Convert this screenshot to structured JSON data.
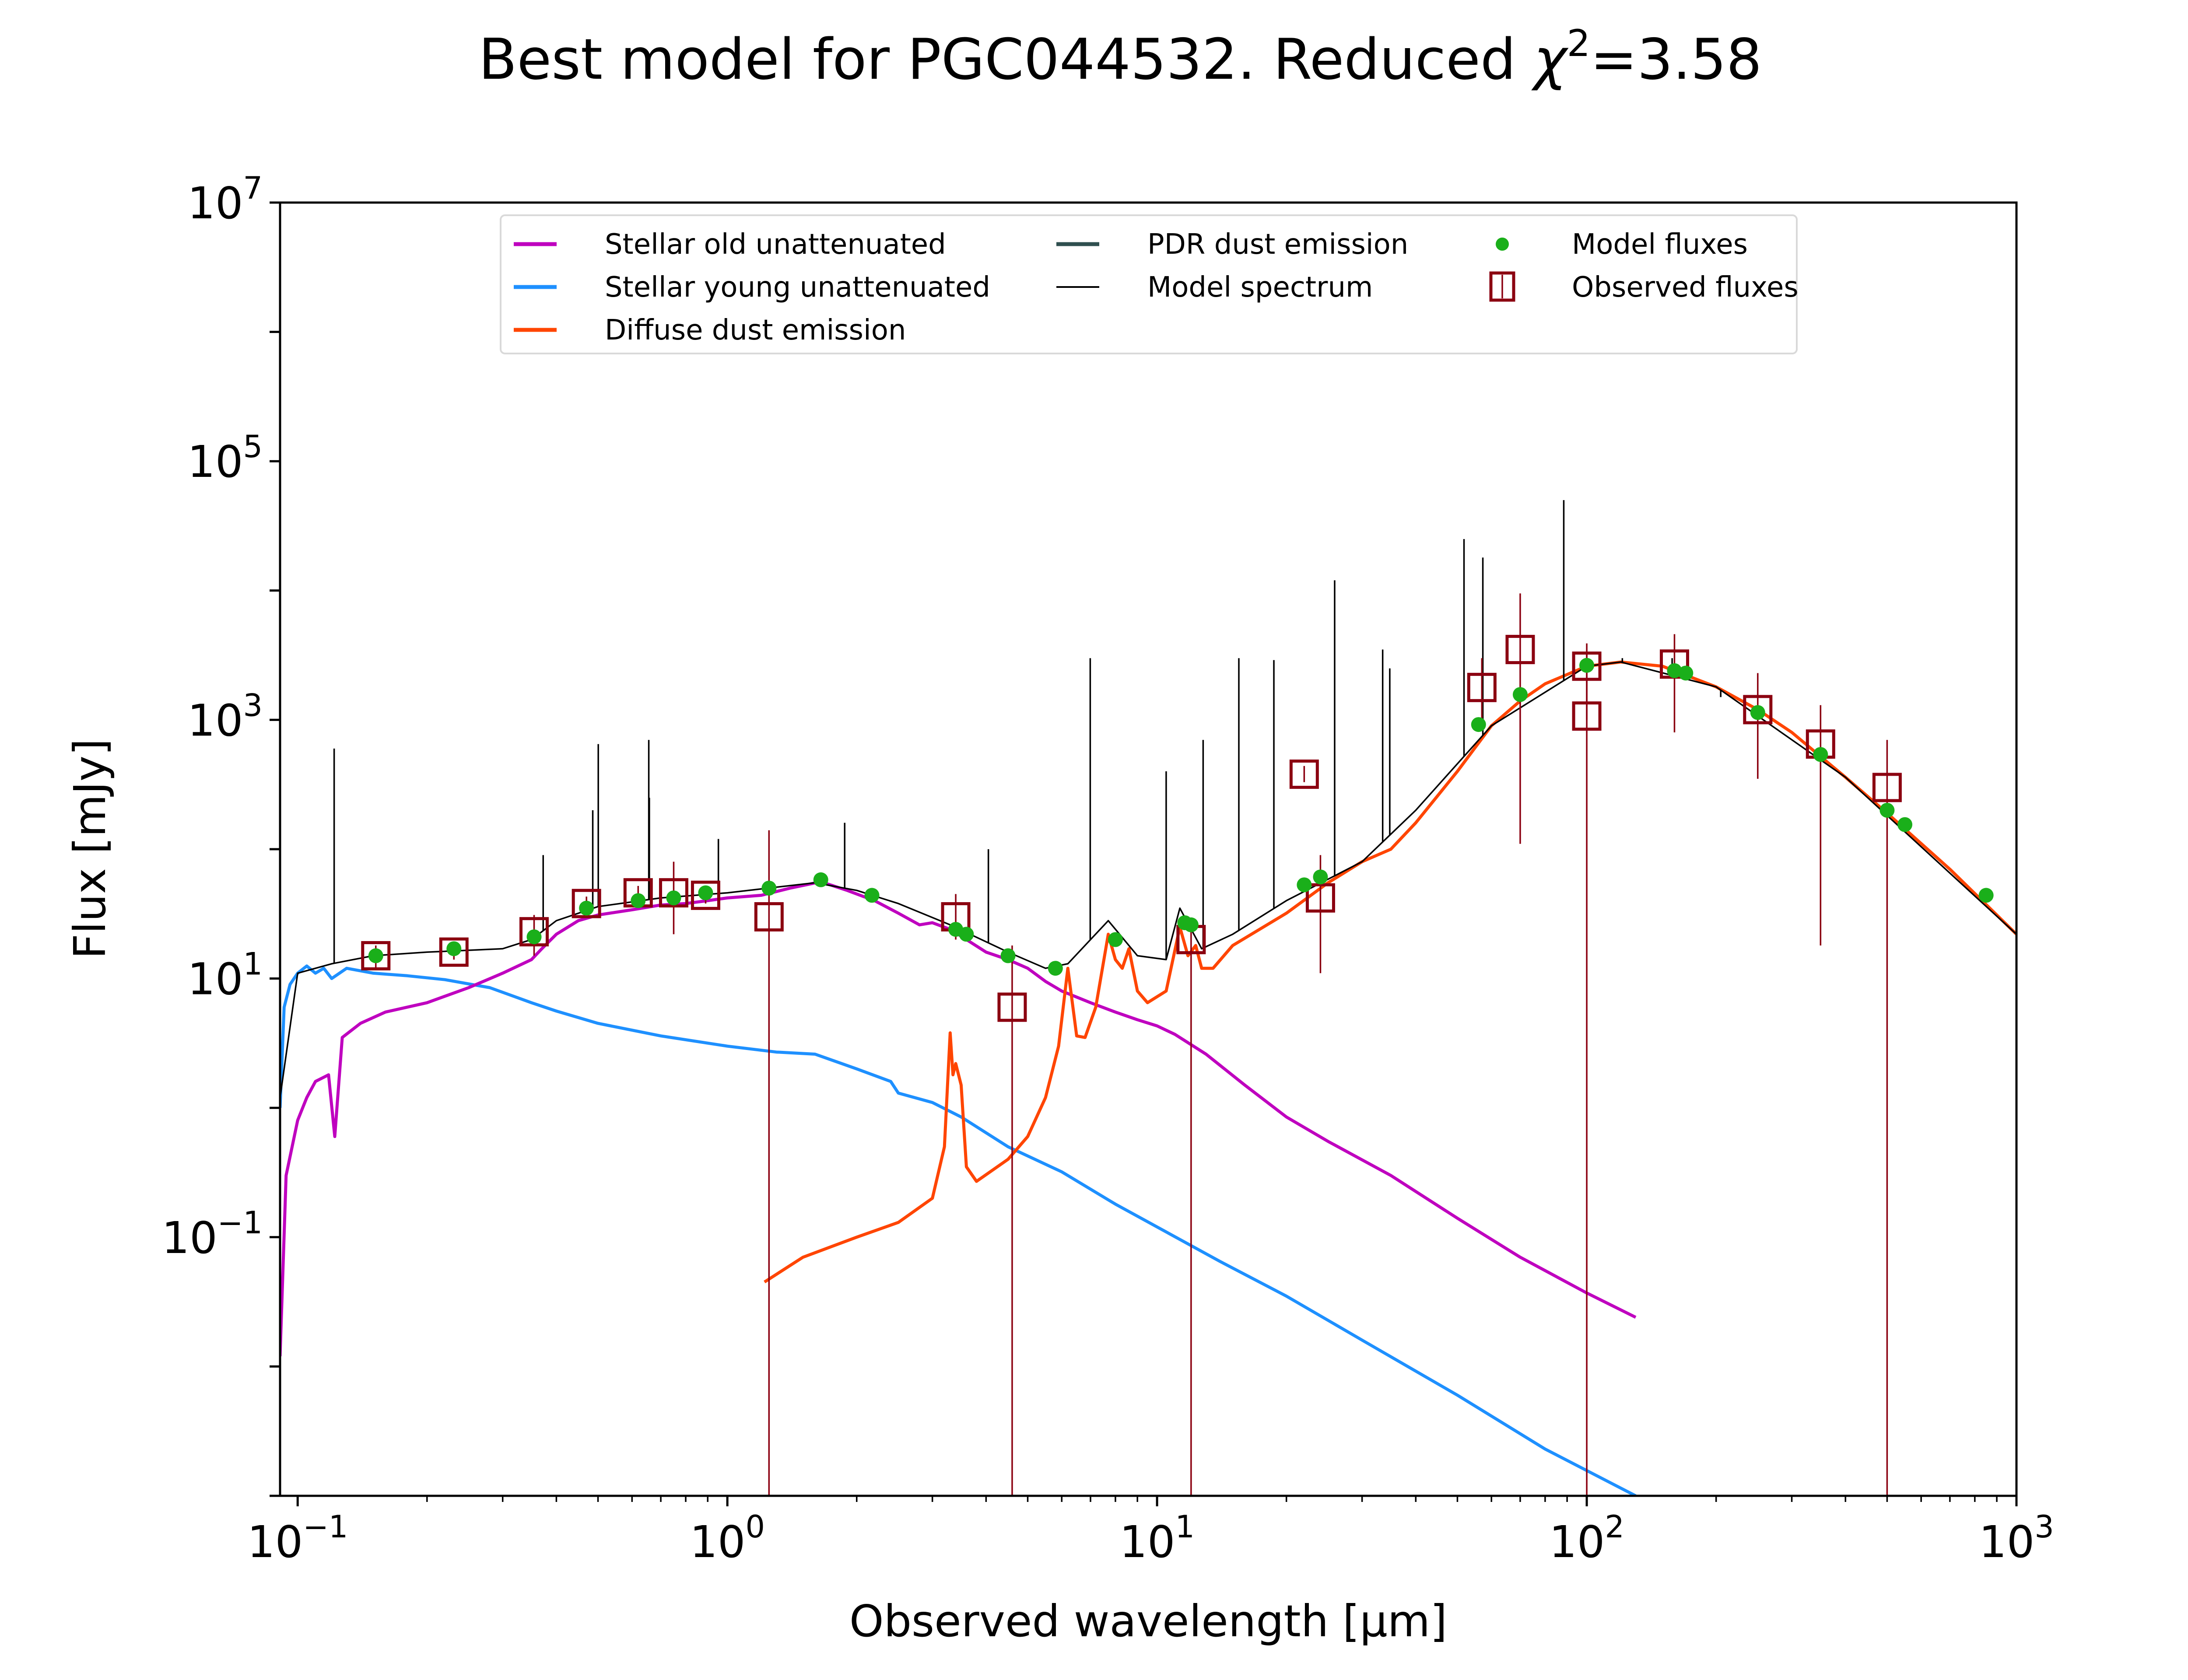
{
  "chart_data": {
    "type": "line",
    "title": "Best model for PGC044532. Reduced χ²=3.58",
    "title_parts": {
      "prefix": "Best model for PGC044532. Reduced ",
      "chi": "χ",
      "sup": "2",
      "suffix": "=3.58"
    },
    "xlabel": "Observed wavelength [μm]",
    "ylabel": "Flux [mJy]",
    "xscale": "log",
    "yscale": "log",
    "xlim": [
      0.091,
      1000
    ],
    "ylim": [
      0.001,
      10000000
    ],
    "grid": false,
    "x_ticks": [
      {
        "value": 0.1,
        "base": "10",
        "exp": "−1"
      },
      {
        "value": 1,
        "base": "10",
        "exp": "0"
      },
      {
        "value": 10,
        "base": "10",
        "exp": "1"
      },
      {
        "value": 100,
        "base": "10",
        "exp": "2"
      },
      {
        "value": 1000,
        "base": "10",
        "exp": "3"
      }
    ],
    "y_ticks": [
      {
        "value": 0.1,
        "base": "10",
        "exp": "−1"
      },
      {
        "value": 10,
        "base": "10",
        "exp": "1"
      },
      {
        "value": 1000,
        "base": "10",
        "exp": "3"
      },
      {
        "value": 100000,
        "base": "10",
        "exp": "5"
      },
      {
        "value": 10000000,
        "base": "10",
        "exp": "7"
      }
    ],
    "legend": {
      "placement": "top-center",
      "ncol": 3,
      "entries": [
        {
          "label": "Stellar old unattenuated",
          "kind": "line",
          "color": "#BF00BF"
        },
        {
          "label": "Stellar young unattenuated",
          "kind": "line",
          "color": "#1E90FF"
        },
        {
          "label": "Diffuse dust emission",
          "kind": "line",
          "color": "#FF4500"
        },
        {
          "label": "PDR dust emission",
          "kind": "line",
          "color": "#2F4F4F"
        },
        {
          "label": "Model spectrum",
          "kind": "thin-line",
          "color": "#000000"
        },
        {
          "label": "Model fluxes",
          "kind": "dot",
          "color": "#1AAF1A"
        },
        {
          "label": "Observed fluxes",
          "kind": "square",
          "color": "#8B0010"
        }
      ]
    },
    "series": [
      {
        "name": "Stellar old unattenuated",
        "color": "#BF00BF",
        "points": [
          [
            0.091,
            0.012
          ],
          [
            0.094,
            0.3
          ],
          [
            0.1,
            0.8
          ],
          [
            0.105,
            1.2
          ],
          [
            0.11,
            1.6
          ],
          [
            0.118,
            1.8
          ],
          [
            0.122,
            0.6
          ],
          [
            0.127,
            3.5
          ],
          [
            0.14,
            4.5
          ],
          [
            0.16,
            5.5
          ],
          [
            0.2,
            6.5
          ],
          [
            0.25,
            8.5
          ],
          [
            0.3,
            11
          ],
          [
            0.35,
            14
          ],
          [
            0.37,
            17
          ],
          [
            0.4,
            22
          ],
          [
            0.45,
            28
          ],
          [
            0.5,
            31
          ],
          [
            0.6,
            34
          ],
          [
            0.7,
            37
          ],
          [
            0.8,
            38
          ],
          [
            0.9,
            40
          ],
          [
            1.0,
            42
          ],
          [
            1.2,
            44
          ],
          [
            1.4,
            50
          ],
          [
            1.65,
            56
          ],
          [
            1.9,
            48
          ],
          [
            2.2,
            40
          ],
          [
            2.5,
            32
          ],
          [
            2.8,
            26
          ],
          [
            3.0,
            27
          ],
          [
            3.3,
            24
          ],
          [
            3.6,
            20
          ],
          [
            4.0,
            16
          ],
          [
            4.5,
            14
          ],
          [
            5.0,
            12
          ],
          [
            5.5,
            9.5
          ],
          [
            6,
            8
          ],
          [
            7,
            6.5
          ],
          [
            8,
            5.5
          ],
          [
            9,
            4.8
          ],
          [
            10,
            4.3
          ],
          [
            11,
            3.7
          ],
          [
            13,
            2.6
          ],
          [
            16,
            1.5
          ],
          [
            20,
            0.85
          ],
          [
            25,
            0.55
          ],
          [
            35,
            0.3
          ],
          [
            50,
            0.14
          ],
          [
            70,
            0.07
          ],
          [
            100,
            0.037
          ],
          [
            130,
            0.024
          ]
        ]
      },
      {
        "name": "Stellar young unattenuated",
        "color": "#1E90FF",
        "points": [
          [
            0.091,
            1.0
          ],
          [
            0.093,
            6
          ],
          [
            0.096,
            9
          ],
          [
            0.1,
            11
          ],
          [
            0.105,
            12.5
          ],
          [
            0.11,
            11
          ],
          [
            0.115,
            12
          ],
          [
            0.12,
            10
          ],
          [
            0.13,
            12
          ],
          [
            0.15,
            11
          ],
          [
            0.18,
            10.5
          ],
          [
            0.22,
            9.8
          ],
          [
            0.28,
            8.5
          ],
          [
            0.35,
            6.5
          ],
          [
            0.4,
            5.6
          ],
          [
            0.5,
            4.5
          ],
          [
            0.7,
            3.6
          ],
          [
            1.0,
            3.0
          ],
          [
            1.3,
            2.7
          ],
          [
            1.6,
            2.6
          ],
          [
            2.0,
            2.0
          ],
          [
            2.4,
            1.6
          ],
          [
            2.5,
            1.3
          ],
          [
            3.0,
            1.1
          ],
          [
            3.5,
            0.85
          ],
          [
            4.5,
            0.5
          ],
          [
            6,
            0.32
          ],
          [
            8,
            0.18
          ],
          [
            10,
            0.12
          ],
          [
            14,
            0.065
          ],
          [
            20,
            0.035
          ],
          [
            30,
            0.016
          ],
          [
            50,
            0.006
          ],
          [
            80,
            0.0023
          ],
          [
            130,
            0.001
          ]
        ]
      },
      {
        "name": "Diffuse dust emission",
        "color": "#FF4500",
        "points": [
          [
            1.22,
            0.045
          ],
          [
            1.5,
            0.07
          ],
          [
            2,
            0.1
          ],
          [
            2.5,
            0.13
          ],
          [
            3.0,
            0.2
          ],
          [
            3.2,
            0.5
          ],
          [
            3.3,
            3.8
          ],
          [
            3.35,
            1.8
          ],
          [
            3.4,
            2.2
          ],
          [
            3.5,
            1.5
          ],
          [
            3.6,
            0.35
          ],
          [
            3.8,
            0.27
          ],
          [
            4.5,
            0.4
          ],
          [
            5.0,
            0.6
          ],
          [
            5.5,
            1.2
          ],
          [
            5.9,
            3
          ],
          [
            6.2,
            12
          ],
          [
            6.5,
            3.6
          ],
          [
            6.8,
            3.5
          ],
          [
            7.2,
            6
          ],
          [
            7.7,
            22
          ],
          [
            8.0,
            14
          ],
          [
            8.3,
            12
          ],
          [
            8.6,
            17
          ],
          [
            9.0,
            8
          ],
          [
            9.5,
            6.5
          ],
          [
            10.5,
            8
          ],
          [
            11.3,
            25
          ],
          [
            11.8,
            15
          ],
          [
            12.3,
            18
          ],
          [
            12.7,
            12
          ],
          [
            13.5,
            12
          ],
          [
            15,
            18
          ],
          [
            20,
            32
          ],
          [
            25,
            55
          ],
          [
            30,
            80
          ],
          [
            35,
            100
          ],
          [
            40,
            160
          ],
          [
            50,
            400
          ],
          [
            60,
            900
          ],
          [
            70,
            1400
          ],
          [
            80,
            1900
          ],
          [
            100,
            2600
          ],
          [
            120,
            2800
          ],
          [
            150,
            2600
          ],
          [
            200,
            1800
          ],
          [
            250,
            1200
          ],
          [
            300,
            800
          ],
          [
            400,
            360
          ],
          [
            500,
            190
          ],
          [
            700,
            70
          ],
          [
            1000,
            22
          ]
        ]
      },
      {
        "name": "Model spectrum",
        "color": "#000000",
        "points": [
          [
            0.091,
            1.2
          ],
          [
            0.1,
            11
          ],
          [
            0.12,
            13
          ],
          [
            0.15,
            15
          ],
          [
            0.2,
            16
          ],
          [
            0.3,
            17
          ],
          [
            0.35,
            20
          ],
          [
            0.4,
            28
          ],
          [
            0.5,
            36
          ],
          [
            0.7,
            42
          ],
          [
            1.0,
            46
          ],
          [
            1.6,
            55
          ],
          [
            2.0,
            48
          ],
          [
            2.5,
            38
          ],
          [
            3.3,
            26
          ],
          [
            4.5,
            16
          ],
          [
            5.5,
            12
          ],
          [
            6.2,
            13
          ],
          [
            7.7,
            28
          ],
          [
            9,
            15
          ],
          [
            10.5,
            14
          ],
          [
            11.3,
            35
          ],
          [
            12.7,
            17
          ],
          [
            15,
            22
          ],
          [
            20,
            40
          ],
          [
            30,
            80
          ],
          [
            40,
            200
          ],
          [
            60,
            900
          ],
          [
            100,
            2600
          ],
          [
            120,
            2800
          ],
          [
            200,
            1800
          ],
          [
            400,
            360
          ],
          [
            1000,
            22
          ]
        ],
        "emission_lines": [
          [
            0.1216,
            600
          ],
          [
            0.3727,
            90
          ],
          [
            0.4861,
            200
          ],
          [
            0.5007,
            650
          ],
          [
            0.6563,
            700
          ],
          [
            0.6583,
            250
          ],
          [
            0.9531,
            120
          ],
          [
            1.875,
            160
          ],
          [
            4.05,
            100
          ],
          [
            6.99,
            3000
          ],
          [
            10.5,
            400
          ],
          [
            12.8,
            700
          ],
          [
            15.5,
            3000
          ],
          [
            18.7,
            2900
          ],
          [
            25.9,
            12000
          ],
          [
            33.5,
            3500
          ],
          [
            34.8,
            2500
          ],
          [
            51.8,
            25000
          ],
          [
            57.3,
            18000
          ],
          [
            88.4,
            50000
          ],
          [
            121,
            3000
          ],
          [
            158,
            3000
          ],
          [
            205,
            1500
          ]
        ]
      },
      {
        "name": "Model fluxes",
        "kind": "scatter",
        "color": "#1AAF1A",
        "points": [
          [
            0.152,
            15
          ],
          [
            0.231,
            17
          ],
          [
            0.355,
            21
          ],
          [
            0.47,
            35
          ],
          [
            0.62,
            40
          ],
          [
            0.75,
            42
          ],
          [
            0.89,
            46
          ],
          [
            1.25,
            50
          ],
          [
            1.65,
            58
          ],
          [
            2.17,
            44
          ],
          [
            3.4,
            24
          ],
          [
            3.6,
            22
          ],
          [
            4.5,
            15
          ],
          [
            5.8,
            12
          ],
          [
            8.0,
            20
          ],
          [
            11.6,
            27
          ],
          [
            12,
            26
          ],
          [
            22,
            53
          ],
          [
            24,
            61
          ],
          [
            56,
            920
          ],
          [
            70,
            1570
          ],
          [
            100,
            2640
          ],
          [
            160,
            2400
          ],
          [
            170,
            2300
          ],
          [
            250,
            1140
          ],
          [
            350,
            540
          ],
          [
            500,
            200
          ],
          [
            550,
            155
          ],
          [
            850,
            44
          ]
        ]
      },
      {
        "name": "Observed fluxes",
        "kind": "errorbar",
        "color": "#8B0010",
        "points": [
          {
            "x": 0.152,
            "y": 15,
            "lo": 12,
            "hi": 18
          },
          {
            "x": 0.231,
            "y": 16,
            "lo": 14,
            "hi": 18
          },
          {
            "x": 0.355,
            "y": 23,
            "lo": 15,
            "hi": 31
          },
          {
            "x": 0.47,
            "y": 38,
            "lo": 33,
            "hi": 43
          },
          {
            "x": 0.62,
            "y": 46,
            "lo": 40,
            "hi": 52
          },
          {
            "x": 0.75,
            "y": 46,
            "lo": 22,
            "hi": 80
          },
          {
            "x": 0.89,
            "y": 44,
            "lo": 38,
            "hi": 52
          },
          {
            "x": 1.25,
            "y": 30,
            "lo": 0.001,
            "hi": 140
          },
          {
            "x": 3.4,
            "y": 30,
            "lo": 20,
            "hi": 45
          },
          {
            "x": 4.6,
            "y": 6,
            "lo": 0.001,
            "hi": 18
          },
          {
            "x": 12,
            "y": 20,
            "lo": 0.001,
            "hi": 26
          },
          {
            "x": 22,
            "y": 380,
            "lo": 330,
            "hi": 440
          },
          {
            "x": 24,
            "y": 42,
            "lo": 11,
            "hi": 90
          },
          {
            "x": 57,
            "y": 1780,
            "lo": 1000,
            "hi": 3000
          },
          {
            "x": 70,
            "y": 3500,
            "lo": 110,
            "hi": 9500
          },
          {
            "x": 100,
            "y": 2600,
            "lo": 1000,
            "hi": 3900
          },
          {
            "x": 100,
            "y": 1070,
            "lo": 0.001,
            "hi": 3200
          },
          {
            "x": 160,
            "y": 2700,
            "lo": 800,
            "hi": 4600
          },
          {
            "x": 250,
            "y": 1200,
            "lo": 350,
            "hi": 2300
          },
          {
            "x": 350,
            "y": 650,
            "lo": 18,
            "hi": 1300
          },
          {
            "x": 500,
            "y": 300,
            "lo": 0.001,
            "hi": 700
          }
        ]
      }
    ]
  }
}
